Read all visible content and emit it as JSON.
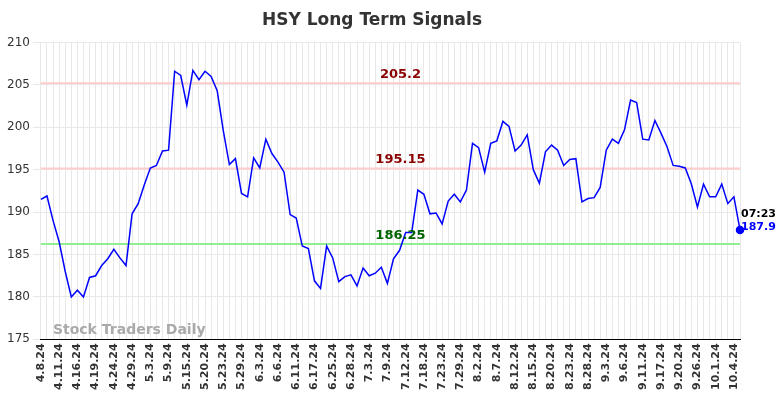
{
  "chart_data": {
    "type": "line",
    "title": "HSY Long Term Signals",
    "categories": [
      "4.8.24",
      null,
      null,
      "4.11.24",
      null,
      null,
      "4.16.24",
      null,
      null,
      "4.19.24",
      null,
      null,
      "4.24.24",
      null,
      null,
      "4.29.24",
      null,
      null,
      "5.3.24",
      null,
      null,
      "5.9.24",
      null,
      null,
      "5.15.24",
      null,
      null,
      "5.20.24",
      null,
      null,
      "5.23.24",
      null,
      null,
      "5.29.24",
      null,
      null,
      "6.3.24",
      null,
      null,
      "6.6.24",
      null,
      null,
      "6.11.24",
      null,
      null,
      "6.17.24",
      null,
      null,
      "6.25.24",
      null,
      null,
      "6.28.24",
      null,
      null,
      "7.3.24",
      null,
      null,
      "7.9.24",
      null,
      null,
      "7.12.24",
      null,
      null,
      "7.18.24",
      null,
      null,
      "7.23.24",
      null,
      null,
      "7.29.24",
      null,
      null,
      "8.2.24",
      null,
      null,
      "8.7.24",
      null,
      null,
      "8.12.24",
      null,
      null,
      "8.15.24",
      null,
      null,
      "8.20.24",
      null,
      null,
      "8.23.24",
      null,
      null,
      "8.28.24",
      null,
      null,
      "9.3.24",
      null,
      null,
      "9.6.24",
      null,
      null,
      "9.11.24",
      null,
      null,
      "9.17.24",
      null,
      null,
      "9.20.24",
      null,
      null,
      "9.26.24",
      null,
      null,
      "10.1.24",
      null,
      null,
      "10.4.24",
      null
    ],
    "values": [
      191.5,
      191.9,
      189,
      186.5,
      183,
      180,
      180.8,
      180,
      182.3,
      182.5,
      183.7,
      184.5,
      185.6,
      184.6,
      183.7,
      189.8,
      191,
      193.2,
      195.2,
      195.5,
      197.2,
      197.3,
      206.6,
      206.1,
      202.6,
      206.7,
      205.6,
      206.6,
      206,
      204.3,
      199.6,
      195.6,
      196.3,
      192.2,
      191.8,
      196.4,
      195.2,
      198.6,
      196.9,
      195.9,
      194.7,
      189.7,
      189.3,
      186,
      185.7,
      181.9,
      181,
      186,
      184.6,
      181.8,
      182.4,
      182.6,
      181.3,
      183.4,
      182.5,
      182.8,
      183.5,
      181.6,
      184.5,
      185.5,
      187.6,
      187.6,
      192.6,
      192.1,
      189.8,
      189.9,
      188.6,
      191.3,
      192.1,
      191.2,
      192.6,
      198.1,
      197.6,
      194.7,
      198.1,
      198.4,
      200.7,
      200.1,
      197.2,
      197.9,
      199.1,
      195,
      193.4,
      197.1,
      197.9,
      197.3,
      195.5,
      196.2,
      196.3,
      191.2,
      191.6,
      191.7,
      192.9,
      197.3,
      198.6,
      198.1,
      199.7,
      203.2,
      202.9,
      198.6,
      198.5,
      200.8,
      199.3,
      197.7,
      195.5,
      195.4,
      195.2,
      193.3,
      190.6,
      193.3,
      191.8,
      191.8,
      193.3,
      191,
      191.8,
      187.9
    ],
    "color": "#0000ff",
    "ylim": [
      175,
      210
    ],
    "yticks": [
      175,
      180,
      185,
      190,
      195,
      200,
      205,
      210
    ],
    "grid": true,
    "annotations": [
      {
        "y": 205.2,
        "text": "205.2",
        "color": "#ffcccc",
        "text_color": "#8b0000"
      },
      {
        "y": 195.15,
        "text": "195.15",
        "color": "#ffcccc",
        "text_color": "#8b0000"
      },
      {
        "y": 186.25,
        "text": "186.25",
        "color": "#90ee90",
        "text_color": "#006400"
      }
    ],
    "watermark": "Stock Traders Daily",
    "last_point_time": "07:23",
    "last_point_label": {
      "value": 187.9,
      "label": "187.9"
    }
  }
}
